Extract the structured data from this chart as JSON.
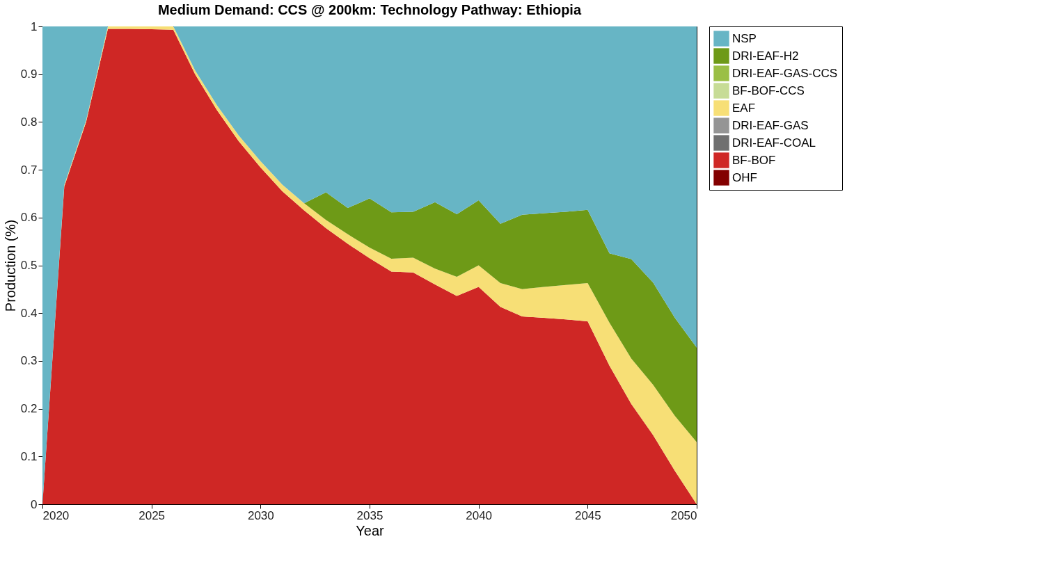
{
  "chart_data": {
    "type": "area",
    "title": "Medium Demand: CCS @ 200km: Technology Pathway: Ethiopia",
    "xlabel": "Year",
    "ylabel": "Production (%)",
    "stacked": true,
    "legend": "right",
    "grid": false,
    "x": [
      2020,
      2021,
      2022,
      2023,
      2024,
      2025,
      2026,
      2027,
      2028,
      2029,
      2030,
      2031,
      2032,
      2033,
      2034,
      2035,
      2036,
      2037,
      2038,
      2039,
      2040,
      2041,
      2042,
      2043,
      2044,
      2045,
      2046,
      2047,
      2048,
      2049,
      2050
    ],
    "xlim": [
      2020,
      2050
    ],
    "xticks": [
      2020,
      2025,
      2030,
      2035,
      2040,
      2045,
      2050
    ],
    "ylim": [
      0,
      1
    ],
    "yticks": [
      0,
      0.1,
      0.2,
      0.3,
      0.4,
      0.5,
      0.6,
      0.7,
      0.8,
      0.9,
      1
    ],
    "series": [
      {
        "name": "OHF",
        "color": "#830000",
        "values": [
          null,
          null,
          null,
          null,
          null,
          null,
          null,
          null,
          null,
          null,
          null,
          null,
          null,
          null,
          null,
          null,
          null,
          null,
          null,
          null,
          null,
          null,
          null,
          null,
          null,
          null,
          null,
          null,
          null,
          null,
          null
        ]
      },
      {
        "name": "BF-BOF",
        "color": "#cf2725",
        "values": [
          0,
          0.665,
          0.8,
          0.995,
          0.995,
          0.994,
          0.993,
          0.9,
          0.825,
          0.76,
          0.705,
          0.655,
          0.615,
          0.578,
          0.545,
          0.515,
          0.487,
          0.485,
          0.46,
          0.436,
          0.455,
          0.413,
          0.393,
          0.39,
          0.387,
          0.383,
          0.29,
          0.21,
          0.145,
          0.07,
          0
        ]
      },
      {
        "name": "DRI-EAF-COAL",
        "color": "#707070",
        "values": [
          null,
          null,
          null,
          null,
          null,
          null,
          null,
          null,
          null,
          null,
          null,
          null,
          null,
          null,
          null,
          null,
          null,
          null,
          null,
          null,
          null,
          null,
          null,
          null,
          null,
          null,
          null,
          null,
          null,
          null,
          null
        ]
      },
      {
        "name": "DRI-EAF-GAS",
        "color": "#959595",
        "values": [
          null,
          null,
          null,
          null,
          null,
          null,
          null,
          null,
          null,
          null,
          null,
          null,
          null,
          null,
          null,
          null,
          null,
          null,
          null,
          null,
          null,
          null,
          null,
          null,
          null,
          null,
          null,
          null,
          null,
          null,
          null
        ]
      },
      {
        "name": "EAF",
        "color": "#f7df76",
        "values": [
          0,
          0.003,
          0.003,
          0.005,
          0.005,
          0.006,
          0.007,
          0.008,
          0.01,
          0.012,
          0.013,
          0.014,
          0.015,
          0.017,
          0.02,
          0.022,
          0.027,
          0.031,
          0.033,
          0.04,
          0.045,
          0.05,
          0.057,
          0.065,
          0.072,
          0.08,
          0.09,
          0.095,
          0.105,
          0.115,
          0.13
        ]
      },
      {
        "name": "BF-BOF-CCS",
        "color": "#c7dc96",
        "values": [
          null,
          null,
          null,
          null,
          null,
          null,
          null,
          null,
          null,
          null,
          null,
          null,
          null,
          null,
          null,
          null,
          null,
          null,
          null,
          null,
          null,
          null,
          null,
          null,
          null,
          null,
          null,
          null,
          null,
          null,
          null
        ]
      },
      {
        "name": "DRI-EAF-GAS-CCS",
        "color": "#9bbf45",
        "values": [
          null,
          null,
          null,
          null,
          null,
          null,
          null,
          null,
          null,
          null,
          null,
          null,
          null,
          null,
          null,
          null,
          null,
          null,
          null,
          null,
          null,
          null,
          null,
          null,
          null,
          null,
          null,
          null,
          null,
          null,
          null
        ]
      },
      {
        "name": "DRI-EAF-H2",
        "color": "#6e9a17",
        "values": [
          null,
          null,
          null,
          null,
          null,
          null,
          null,
          null,
          null,
          null,
          null,
          null,
          0,
          0.058,
          0.055,
          0.103,
          0.097,
          0.096,
          0.139,
          0.131,
          0.136,
          0.124,
          0.156,
          0.154,
          0.153,
          0.153,
          0.145,
          0.208,
          0.214,
          0.205,
          0.198
        ]
      },
      {
        "name": "NSP",
        "color": "#67b5c5",
        "values": [
          1,
          0.332,
          0.197,
          0,
          null,
          null,
          0,
          0.092,
          0.165,
          0.228,
          0.282,
          0.331,
          0.37,
          0.347,
          0.38,
          0.36,
          0.389,
          0.388,
          0.368,
          0.393,
          0.364,
          0.413,
          0.394,
          0.391,
          0.388,
          0.384,
          0.475,
          0.487,
          0.536,
          0.61,
          0.672
        ]
      }
    ]
  }
}
